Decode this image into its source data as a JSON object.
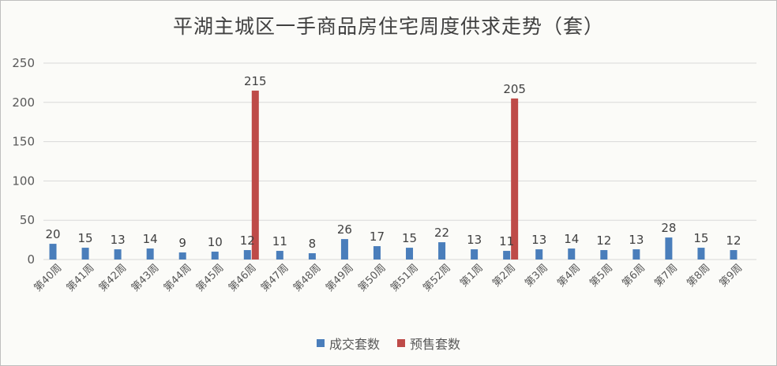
{
  "chart_data": {
    "type": "bar",
    "title": "平湖主城区一手商品房住宅周度供求走势（套）",
    "categories": [
      "第40周",
      "第41周",
      "第42周",
      "第43周",
      "第44周",
      "第45周",
      "第46周",
      "第47周",
      "第48周",
      "第49周",
      "第50周",
      "第51周",
      "第52周",
      "第1周",
      "第2周",
      "第3周",
      "第4周",
      "第5周",
      "第6周",
      "第7周",
      "第8周",
      "第9周"
    ],
    "series": [
      {
        "name": "成交套数",
        "color": "#4a7ebb",
        "values": [
          20,
          15,
          13,
          14,
          9,
          10,
          12,
          11,
          8,
          26,
          17,
          15,
          22,
          13,
          11,
          13,
          14,
          12,
          13,
          28,
          15,
          12
        ],
        "labels": [
          "20",
          "15",
          "13",
          "14",
          "9",
          "10",
          "12",
          "11",
          "8",
          "26",
          "17",
          "15",
          "22",
          "13",
          "11",
          "13",
          "14",
          "12",
          "13",
          "28",
          "15",
          "12"
        ]
      },
      {
        "name": "预售套数",
        "color": "#be4b48",
        "values": [
          0,
          0,
          0,
          0,
          0,
          0,
          215,
          0,
          0,
          0,
          0,
          0,
          0,
          0,
          205,
          0,
          0,
          0,
          0,
          0,
          0,
          0
        ],
        "labels": [
          "",
          "",
          "",
          "",
          "",
          "",
          "215",
          "",
          "",
          "",
          "",
          "",
          "",
          "",
          "205",
          "",
          "",
          "",
          "",
          "",
          "",
          ""
        ]
      }
    ],
    "ylim": [
      0,
      250
    ],
    "yticks": [
      0,
      50,
      100,
      150,
      200,
      250
    ],
    "ytick_labels": [
      "0",
      "50",
      "100",
      "150",
      "200",
      "250"
    ],
    "grid": true,
    "legend": "bottom"
  }
}
